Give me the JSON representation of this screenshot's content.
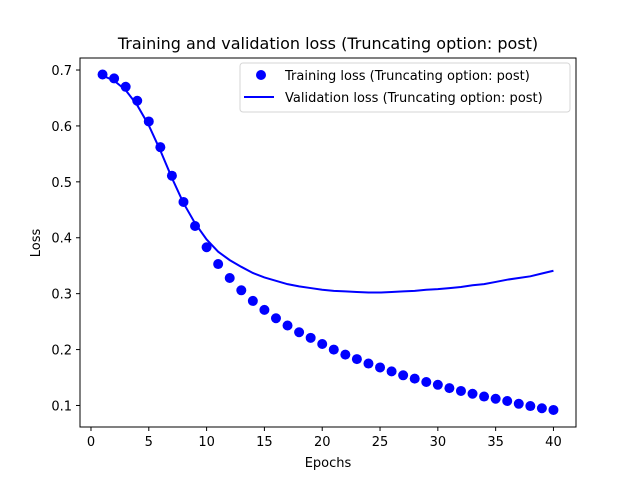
{
  "chart_data": {
    "type": "line",
    "title": "Training and validation loss (Truncating option: post)",
    "xlabel": "Epochs",
    "ylabel": "Loss",
    "xlim": [
      -0.95,
      41.95
    ],
    "ylim": [
      0.0615,
      0.7215
    ],
    "xticks": [
      0,
      5,
      10,
      15,
      20,
      25,
      30,
      35,
      40
    ],
    "yticks": [
      0.1,
      0.2,
      0.3,
      0.4,
      0.5,
      0.6,
      0.7
    ],
    "ytick_labels": [
      "0.1",
      "0.2",
      "0.3",
      "0.4",
      "0.5",
      "0.6",
      "0.7"
    ],
    "grid": false,
    "legend_position": "top-right",
    "x": [
      1,
      2,
      3,
      4,
      5,
      6,
      7,
      8,
      9,
      10,
      11,
      12,
      13,
      14,
      15,
      16,
      17,
      18,
      19,
      20,
      21,
      22,
      23,
      24,
      25,
      26,
      27,
      28,
      29,
      30,
      31,
      32,
      33,
      34,
      35,
      36,
      37,
      38,
      39,
      40
    ],
    "series": [
      {
        "name": "Training loss (Truncating option: post)",
        "style": "markers",
        "color": "#0000ff",
        "values": [
          0.692,
          0.685,
          0.67,
          0.645,
          0.608,
          0.562,
          0.511,
          0.464,
          0.421,
          0.383,
          0.353,
          0.328,
          0.306,
          0.287,
          0.271,
          0.256,
          0.243,
          0.231,
          0.221,
          0.21,
          0.2,
          0.191,
          0.183,
          0.175,
          0.168,
          0.161,
          0.154,
          0.148,
          0.142,
          0.137,
          0.131,
          0.126,
          0.121,
          0.116,
          0.112,
          0.108,
          0.103,
          0.099,
          0.095,
          0.092
        ]
      },
      {
        "name": "Validation loss (Truncating option: post)",
        "style": "line",
        "color": "#0000ff",
        "values": [
          0.69,
          0.681,
          0.664,
          0.637,
          0.601,
          0.556,
          0.507,
          0.462,
          0.426,
          0.397,
          0.375,
          0.36,
          0.348,
          0.337,
          0.329,
          0.323,
          0.317,
          0.313,
          0.31,
          0.307,
          0.305,
          0.304,
          0.303,
          0.302,
          0.302,
          0.303,
          0.304,
          0.305,
          0.307,
          0.308,
          0.31,
          0.312,
          0.315,
          0.317,
          0.321,
          0.325,
          0.328,
          0.331,
          0.336,
          0.341
        ]
      }
    ]
  }
}
